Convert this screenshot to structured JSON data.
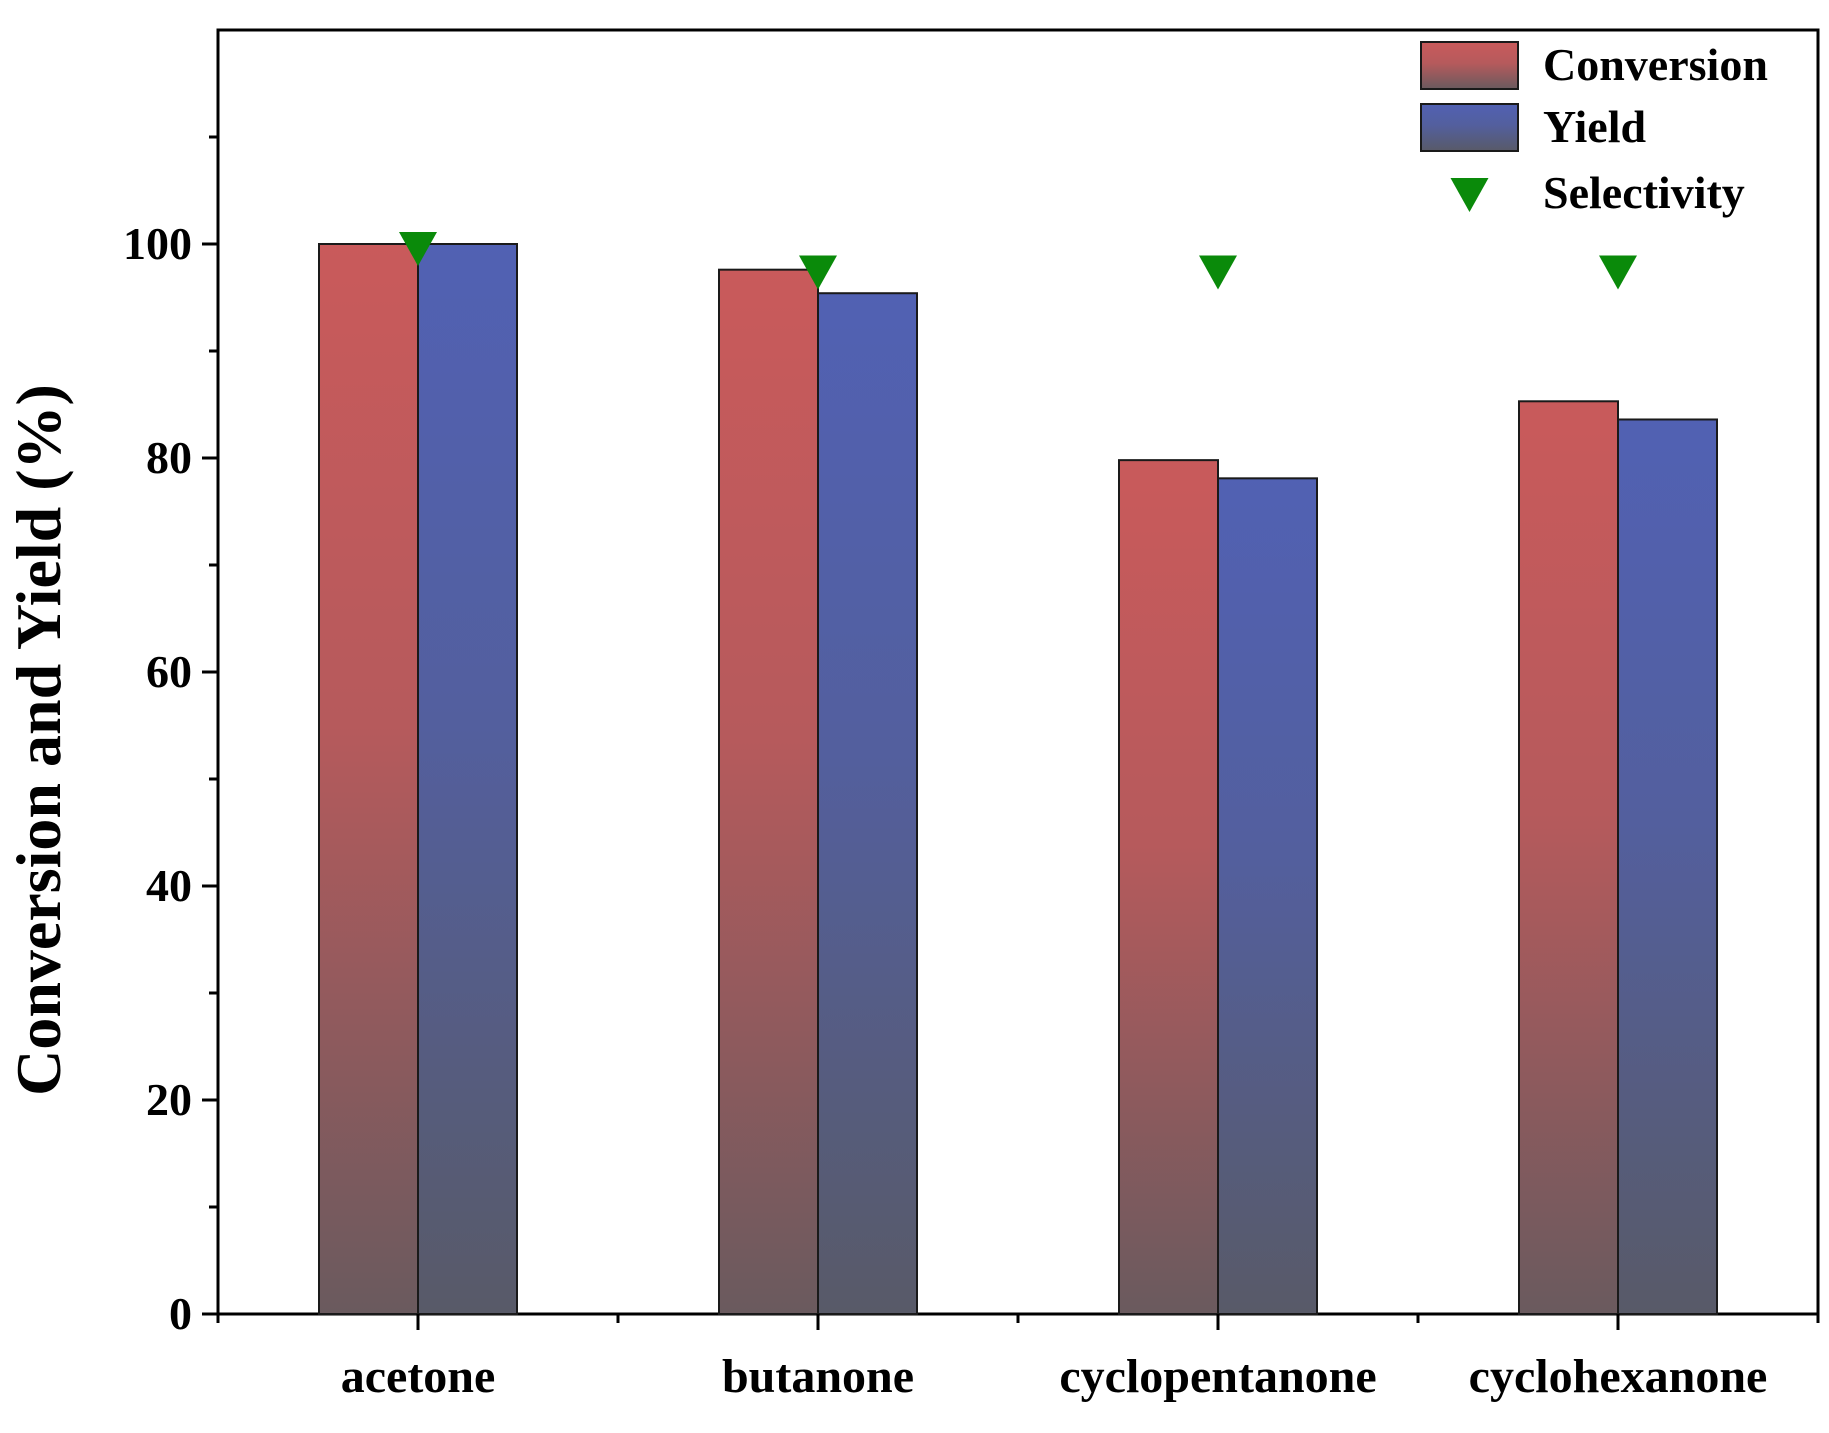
{
  "chart_data": {
    "type": "bar",
    "title": "",
    "xlabel": "",
    "ylabel": "Conversion and Yield (%)",
    "ylim": [
      0,
      120
    ],
    "yticks": [
      0,
      20,
      40,
      60,
      80,
      100
    ],
    "categories": [
      "acetone",
      "butanone",
      "cyclopentanone",
      "cyclohexanone"
    ],
    "series": [
      {
        "name": "Conversion",
        "kind": "bar",
        "values": [
          100,
          97.6,
          79.8,
          85.3
        ],
        "color": "#c85a5a"
      },
      {
        "name": "Yield",
        "kind": "bar",
        "values": [
          100,
          95.4,
          78.1,
          83.6
        ],
        "color": "#5262b4"
      },
      {
        "name": "Selectivity",
        "kind": "marker",
        "marker": "triangle-down",
        "values": [
          100,
          97.8,
          97.8,
          97.8
        ],
        "color": "#0a8a0a"
      }
    ],
    "legend_position": "top-right",
    "grid": false
  }
}
